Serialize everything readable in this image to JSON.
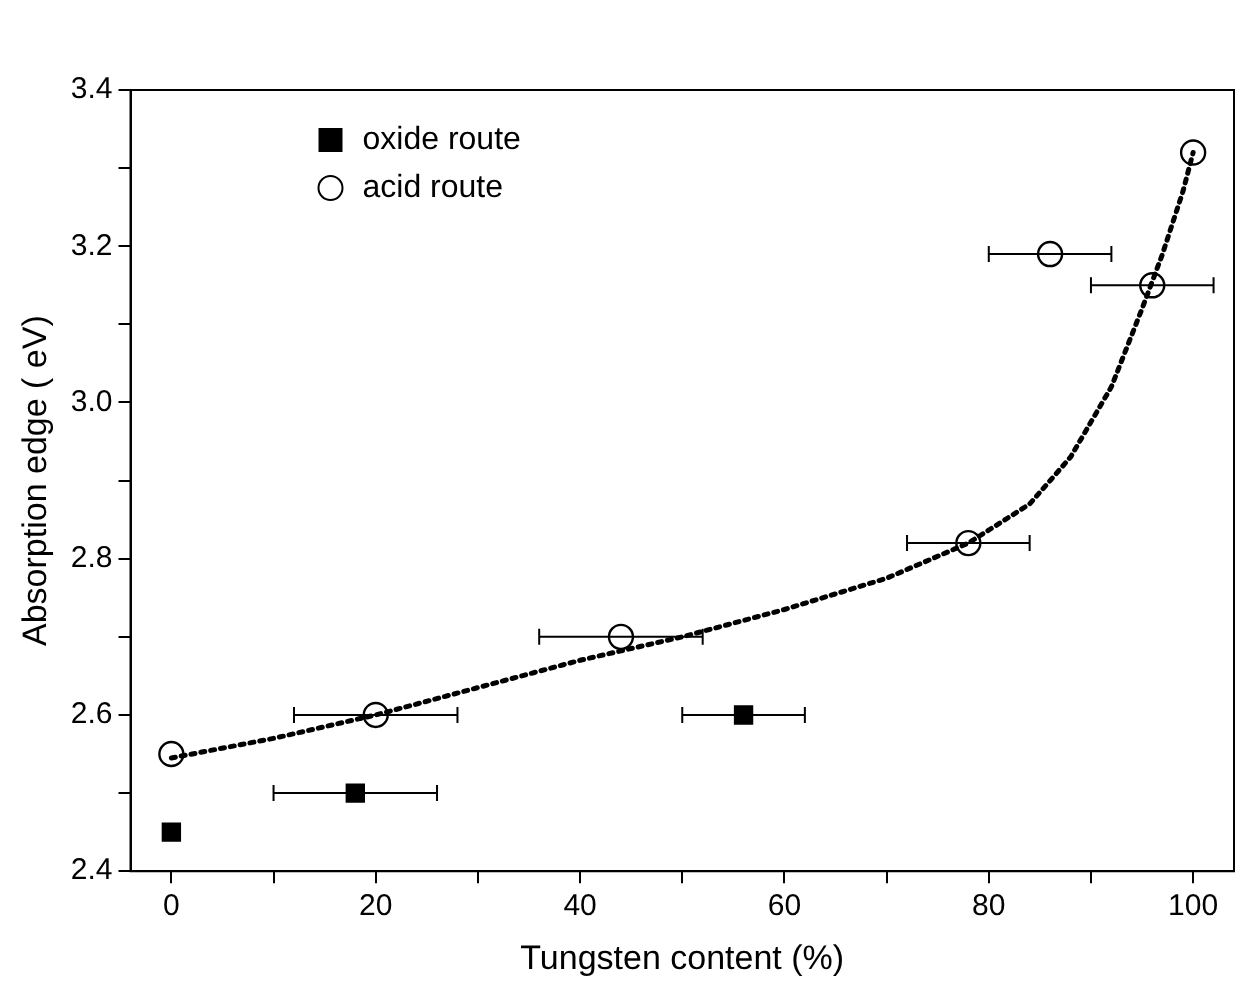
{
  "chart_data": {
    "type": "scatter",
    "xlabel": "Tungsten content (%)",
    "ylabel": "Absorption edge ( eV)",
    "xlim": [
      -4,
      104
    ],
    "xticks": [
      0,
      {
        "value": 10,
        "label": null
      },
      20,
      {
        "value": 30,
        "label": null
      },
      40,
      {
        "value": 50,
        "label": null
      },
      60,
      {
        "value": 70,
        "label": null
      },
      80,
      {
        "value": 90,
        "label": null
      },
      100
    ],
    "ylim": [
      2.4,
      3.4
    ],
    "yticks": [
      {
        "value": 2.4,
        "label": "2.4"
      },
      {
        "value": 2.5,
        "label": null
      },
      {
        "value": 2.6,
        "label": "2.6"
      },
      {
        "value": 2.7,
        "label": null
      },
      {
        "value": 2.8,
        "label": "2.8"
      },
      {
        "value": 2.9,
        "label": null
      },
      {
        "value": 3.0,
        "label": "3.0"
      },
      {
        "value": 3.1,
        "label": null
      },
      {
        "value": 3.2,
        "label": "3.2"
      },
      {
        "value": 3.3,
        "label": null
      },
      {
        "value": 3.4,
        "label": "3.4"
      }
    ],
    "grid": false,
    "legend": "top left",
    "series": [
      {
        "name": "oxide route",
        "marker": "square",
        "color": "#000000",
        "x": [
          0,
          18,
          56
        ],
        "values": [
          2.45,
          2.5,
          2.6
        ],
        "xerrors": [
          null,
          8,
          6
        ]
      },
      {
        "name": "acid route",
        "marker": "circle",
        "color": "#000000",
        "x": [
          0,
          20,
          44,
          78,
          86,
          96,
          100
        ],
        "values": [
          2.55,
          2.6,
          2.7,
          2.82,
          3.19,
          3.15,
          3.32
        ],
        "xerrors": [
          null,
          8,
          8,
          6,
          6,
          6,
          null
        ]
      },
      {
        "type": "line",
        "marker": "none",
        "line_style": "dotted",
        "color": "#000000",
        "x": [
          0,
          10,
          20,
          30,
          40,
          50,
          60,
          70,
          78,
          84,
          88,
          92,
          95,
          97,
          99,
          100
        ],
        "values": [
          2.545,
          2.57,
          2.6,
          2.635,
          2.67,
          2.7,
          2.735,
          2.775,
          2.82,
          2.87,
          2.93,
          3.02,
          3.12,
          3.19,
          3.27,
          3.32
        ]
      }
    ]
  }
}
